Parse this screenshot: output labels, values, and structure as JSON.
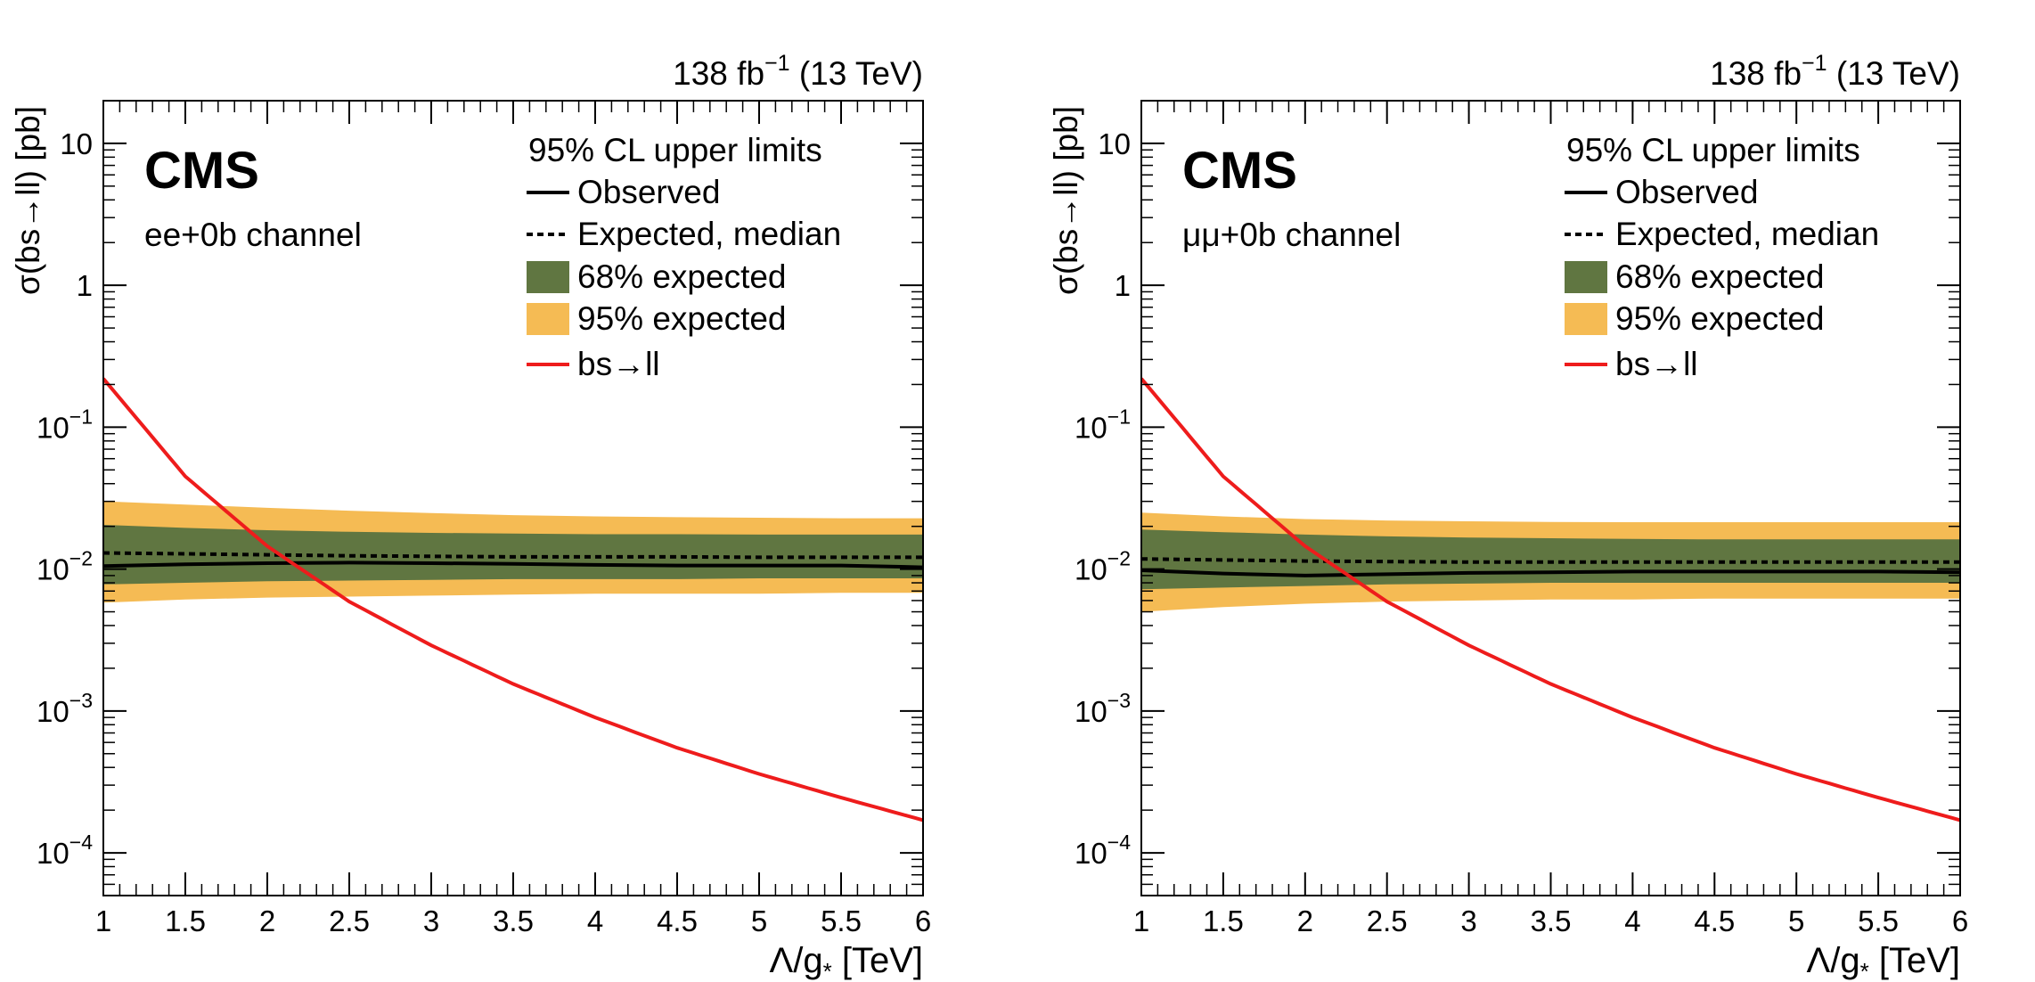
{
  "chart_data": [
    {
      "type": "line",
      "channel": "ee+0b channel",
      "experiment": "CMS",
      "lumi_label": "138 fb",
      "lumi_exp": "−1",
      "energy_label": "(13 TeV)",
      "xlabel_main": "Λ/g",
      "xlabel_sub": "*",
      "xlabel_unit": "[TeV]",
      "ylabel": "σ(bs→ll)  [pb]",
      "xlim": [
        1,
        6
      ],
      "ylim": [
        5e-05,
        20
      ],
      "yscale": "log",
      "xticks": [
        "1",
        "1.5",
        "2",
        "2.5",
        "3",
        "3.5",
        "4",
        "4.5",
        "5",
        "5.5",
        "6"
      ],
      "yticks": [
        {
          "value": 10,
          "base": "10",
          "exp": ""
        },
        {
          "value": 1,
          "base": "1",
          "exp": ""
        },
        {
          "value": 0.1,
          "base": "10",
          "exp": "−1"
        },
        {
          "value": 0.01,
          "base": "10",
          "exp": "−2"
        },
        {
          "value": 0.001,
          "base": "10",
          "exp": "−3"
        },
        {
          "value": 0.0001,
          "base": "10",
          "exp": "−4"
        }
      ],
      "legend_title": "95% CL upper limits",
      "legend": [
        "Observed",
        "Expected, median",
        "68% expected",
        "95% expected",
        "bs→ll"
      ],
      "x": [
        1,
        1.5,
        2,
        2.5,
        3,
        3.5,
        4,
        4.5,
        5,
        5.5,
        6
      ],
      "observed": [
        0.0105,
        0.0108,
        0.011,
        0.0111,
        0.011,
        0.0109,
        0.0107,
        0.0106,
        0.0106,
        0.0106,
        0.0103
      ],
      "expected_median": [
        0.013,
        0.0128,
        0.0126,
        0.0124,
        0.0123,
        0.0122,
        0.0122,
        0.0122,
        0.0121,
        0.0121,
        0.0121
      ],
      "band68_low": [
        0.0078,
        0.008,
        0.0082,
        0.0083,
        0.0084,
        0.0085,
        0.0085,
        0.0085,
        0.0086,
        0.0086,
        0.0086
      ],
      "band68_high": [
        0.0205,
        0.0195,
        0.0188,
        0.0183,
        0.018,
        0.0178,
        0.0176,
        0.0176,
        0.0175,
        0.0175,
        0.0175
      ],
      "band95_low": [
        0.0058,
        0.0061,
        0.0063,
        0.0064,
        0.0065,
        0.0066,
        0.0067,
        0.0067,
        0.0067,
        0.0068,
        0.0068
      ],
      "band95_high": [
        0.03,
        0.0285,
        0.027,
        0.0258,
        0.0248,
        0.024,
        0.0235,
        0.0232,
        0.023,
        0.0228,
        0.0228
      ],
      "theory": [
        0.22,
        0.045,
        0.0145,
        0.0059,
        0.0029,
        0.00155,
        0.0009,
        0.00055,
        0.00036,
        0.000245,
        0.00017
      ],
      "colors": {
        "observed": "#000000",
        "expected": "#000000",
        "band68": "#607641",
        "band95": "#f5bb54",
        "theory": "#ee1c1c"
      }
    },
    {
      "type": "line",
      "channel": "μμ+0b channel",
      "experiment": "CMS",
      "lumi_label": "138 fb",
      "lumi_exp": "−1",
      "energy_label": "(13 TeV)",
      "xlabel_main": "Λ/g",
      "xlabel_sub": "*",
      "xlabel_unit": "[TeV]",
      "ylabel": "σ(bs→ll)  [pb]",
      "xlim": [
        1,
        6
      ],
      "ylim": [
        5e-05,
        20
      ],
      "yscale": "log",
      "xticks": [
        "1",
        "1.5",
        "2",
        "2.5",
        "3",
        "3.5",
        "4",
        "4.5",
        "5",
        "5.5",
        "6"
      ],
      "yticks": [
        {
          "value": 10,
          "base": "10",
          "exp": ""
        },
        {
          "value": 1,
          "base": "1",
          "exp": ""
        },
        {
          "value": 0.1,
          "base": "10",
          "exp": "−1"
        },
        {
          "value": 0.01,
          "base": "10",
          "exp": "−2"
        },
        {
          "value": 0.001,
          "base": "10",
          "exp": "−3"
        },
        {
          "value": 0.0001,
          "base": "10",
          "exp": "−4"
        }
      ],
      "legend_title": "95% CL upper limits",
      "legend": [
        "Observed",
        "Expected, median",
        "68% expected",
        "95% expected",
        "bs→ll"
      ],
      "x": [
        1,
        1.5,
        2,
        2.5,
        3,
        3.5,
        4,
        4.5,
        5,
        5.5,
        6
      ],
      "observed": [
        0.0098,
        0.0093,
        0.009,
        0.0092,
        0.0094,
        0.0095,
        0.0096,
        0.0096,
        0.0096,
        0.0096,
        0.0095
      ],
      "expected_median": [
        0.0118,
        0.0116,
        0.0114,
        0.0113,
        0.0112,
        0.0112,
        0.0112,
        0.0112,
        0.0112,
        0.0112,
        0.0112
      ],
      "band68_low": [
        0.0072,
        0.0074,
        0.0076,
        0.0078,
        0.0079,
        0.008,
        0.008,
        0.008,
        0.008,
        0.008,
        0.008
      ],
      "band68_high": [
        0.019,
        0.0182,
        0.0175,
        0.017,
        0.0167,
        0.0165,
        0.0163,
        0.0162,
        0.0162,
        0.0162,
        0.0162
      ],
      "band95_low": [
        0.005,
        0.0054,
        0.0057,
        0.0059,
        0.006,
        0.0061,
        0.0061,
        0.0062,
        0.0062,
        0.0062,
        0.0062
      ],
      "band95_high": [
        0.025,
        0.0235,
        0.0225,
        0.022,
        0.0217,
        0.0215,
        0.0214,
        0.0214,
        0.0214,
        0.0214,
        0.0214
      ],
      "theory": [
        0.22,
        0.045,
        0.0145,
        0.0059,
        0.0029,
        0.00155,
        0.0009,
        0.00055,
        0.00036,
        0.000245,
        0.00017
      ],
      "colors": {
        "observed": "#000000",
        "expected": "#000000",
        "band68": "#607641",
        "band95": "#f5bb54",
        "theory": "#ee1c1c"
      }
    }
  ]
}
